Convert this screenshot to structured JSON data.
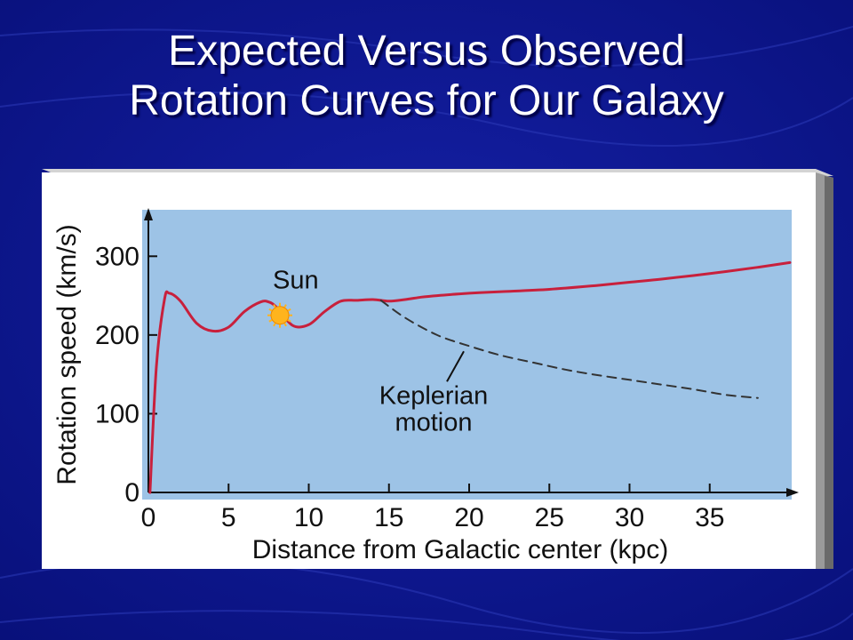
{
  "slide": {
    "title_line1": "Expected Versus Observed",
    "title_line2": "Rotation Curves for Our Galaxy",
    "background_color": "#0c1699"
  },
  "chart_data": {
    "type": "line",
    "title": "",
    "xlabel": "Distance from Galactic center (kpc)",
    "ylabel": "Rotation speed (km/s)",
    "xlim": [
      0,
      40
    ],
    "ylim": [
      0,
      350
    ],
    "xticks": [
      0,
      5,
      10,
      15,
      20,
      25,
      30,
      35
    ],
    "yticks": [
      0,
      100,
      200,
      300
    ],
    "grid": false,
    "legend": "none",
    "plot_background": "#9dc3e6",
    "series": [
      {
        "color": "#c8203c",
        "style": "solid",
        "x": [
          0.1,
          0.5,
          1.0,
          1.3,
          2.0,
          3.0,
          4.0,
          5.0,
          6.0,
          7.0,
          7.5,
          8.0,
          9.0,
          10.0,
          11.0,
          12.0,
          13.0,
          14.0,
          15.0,
          16.0,
          17.0,
          18.0,
          20.0,
          22.0,
          25.0,
          28.0,
          30.0,
          32.0,
          35.0,
          38.0,
          40.0
        ],
        "y": [
          0,
          160,
          245,
          253,
          243,
          215,
          205,
          210,
          230,
          242,
          242,
          235,
          212,
          213,
          230,
          243,
          244,
          245,
          243,
          245,
          248,
          250,
          253,
          255,
          258,
          263,
          267,
          271,
          278,
          286,
          292
        ]
      },
      {
        "color": "#333333",
        "style": "dashed",
        "x": [
          14.5,
          16.0,
          18.0,
          20.0,
          22.0,
          24.0,
          26.0,
          28.0,
          30.0,
          32.0,
          34.0,
          36.0,
          38.0
        ],
        "y": [
          244,
          222,
          200,
          186,
          174,
          165,
          156,
          149,
          143,
          137,
          131,
          124,
          120
        ]
      }
    ],
    "annotations": [
      {
        "text": "Sun",
        "x": 8.2,
        "y": 225,
        "marker": "sun",
        "marker_color": "#ffb41e"
      },
      {
        "text_line1": "Keplerian",
        "text_line2": "motion",
        "points_to": {
          "x": 20.0,
          "y": 186
        }
      }
    ]
  }
}
